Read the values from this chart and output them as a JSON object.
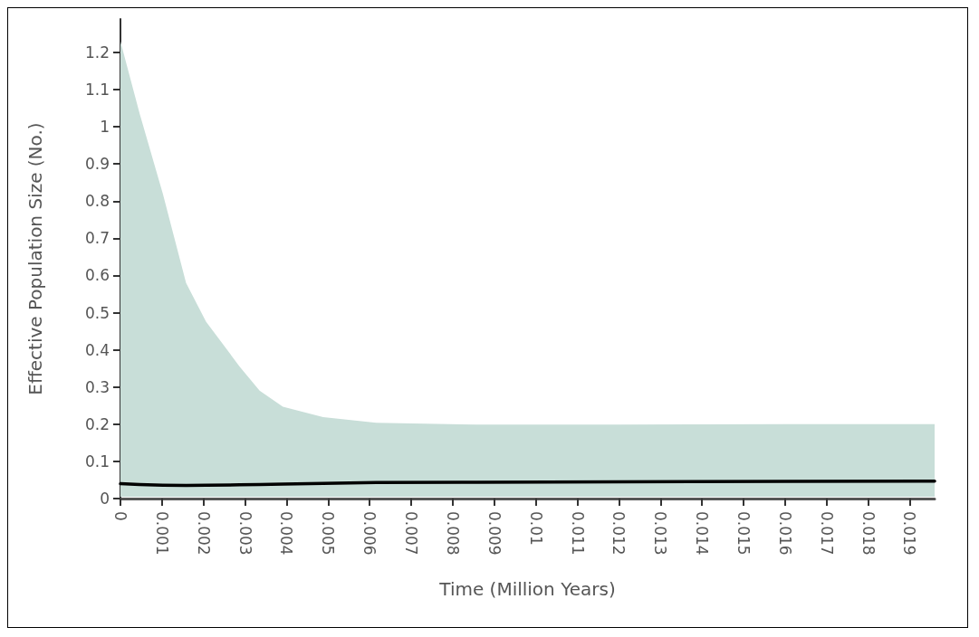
{
  "chart_data": {
    "type": "line",
    "xlabel": "Time (Million Years)",
    "ylabel": "Effective Population Size (No.)",
    "x": [
      0,
      0.00046,
      0.00102,
      0.00158,
      0.00206,
      0.00287,
      0.00335,
      0.00391,
      0.00488,
      0.00616,
      0.00857,
      0.012,
      0.016,
      0.0196
    ],
    "series": [
      {
        "color": "#000000",
        "values": [
          0.04,
          0.038,
          0.036,
          0.035,
          0.036,
          0.037,
          0.038,
          0.039,
          0.041,
          0.043,
          0.044,
          0.045,
          0.046,
          0.047
        ],
        "lower": [
          0.005,
          0.005,
          0.005,
          0.005,
          0.005,
          0.005,
          0.005,
          0.005,
          0.005,
          0.005,
          0.005,
          0.005,
          0.005,
          0.005
        ],
        "upper": [
          1.23,
          1.036,
          0.82,
          0.58,
          0.476,
          0.355,
          0.29,
          0.247,
          0.219,
          0.204,
          0.199,
          0.199,
          0.2,
          0.2
        ]
      }
    ],
    "xlim": [
      0,
      0.0196
    ],
    "ylim": [
      0,
      1.29
    ],
    "xticks": [
      0,
      0.001,
      0.002,
      0.003,
      0.004,
      0.005,
      0.006,
      0.007,
      0.008,
      0.009,
      0.01,
      0.011,
      0.012,
      0.013,
      0.014,
      0.015,
      0.016,
      0.017,
      0.018,
      0.019
    ],
    "yticks": [
      0,
      0.1,
      0.2,
      0.3,
      0.4,
      0.5,
      0.6,
      0.7,
      0.8,
      0.9,
      1,
      1.1,
      1.2
    ],
    "grid": false,
    "marker": "none",
    "line_style": "solid"
  }
}
